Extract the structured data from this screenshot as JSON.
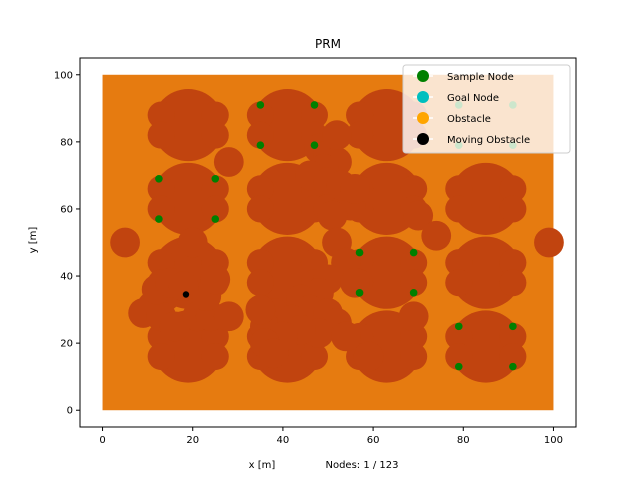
{
  "chart_data": {
    "type": "scatter",
    "title": "PRM",
    "xlabel": "x [m]",
    "ylabel": "y [m]",
    "footer_text": "Nodes: 1 / 123",
    "xlim": [
      -5,
      105
    ],
    "ylim": [
      -5,
      105
    ],
    "xticks": [
      0,
      20,
      40,
      60,
      80,
      100
    ],
    "yticks": [
      0,
      20,
      40,
      60,
      80,
      100
    ],
    "workspace": {
      "x": [
        0,
        100
      ],
      "y": [
        0,
        100
      ],
      "color": "#e67b10"
    },
    "obstacle_color": "#c1440f",
    "obstacle_clusters": [
      {
        "x": 19,
        "y": 85,
        "label": "cluster"
      },
      {
        "x": 41,
        "y": 85,
        "label": "cluster"
      },
      {
        "x": 63,
        "y": 85,
        "label": "cluster"
      },
      {
        "x": 19,
        "y": 63,
        "label": "cluster"
      },
      {
        "x": 41,
        "y": 63,
        "label": "cluster"
      },
      {
        "x": 63,
        "y": 63,
        "label": "cluster"
      },
      {
        "x": 85,
        "y": 63,
        "label": "cluster"
      },
      {
        "x": 19,
        "y": 41,
        "label": "cluster"
      },
      {
        "x": 41,
        "y": 41,
        "label": "cluster"
      },
      {
        "x": 63,
        "y": 41,
        "label": "cluster"
      },
      {
        "x": 85,
        "y": 41,
        "label": "cluster"
      },
      {
        "x": 19,
        "y": 19,
        "label": "cluster"
      },
      {
        "x": 41,
        "y": 19,
        "label": "cluster"
      },
      {
        "x": 63,
        "y": 19,
        "label": "cluster"
      },
      {
        "x": 85,
        "y": 19,
        "label": "cluster"
      }
    ],
    "extra_obstacles": [
      {
        "x": 5,
        "y": 50
      },
      {
        "x": 28,
        "y": 74
      },
      {
        "x": 20,
        "y": 50
      },
      {
        "x": 48,
        "y": 78
      },
      {
        "x": 50,
        "y": 76
      },
      {
        "x": 52,
        "y": 74
      },
      {
        "x": 49,
        "y": 72
      },
      {
        "x": 46,
        "y": 70
      },
      {
        "x": 50,
        "y": 68
      },
      {
        "x": 52,
        "y": 64
      },
      {
        "x": 55,
        "y": 61
      },
      {
        "x": 50,
        "y": 60
      },
      {
        "x": 51,
        "y": 58
      },
      {
        "x": 53,
        "y": 67
      },
      {
        "x": 56,
        "y": 66
      },
      {
        "x": 52,
        "y": 82
      },
      {
        "x": 70,
        "y": 58
      },
      {
        "x": 74,
        "y": 52
      },
      {
        "x": 52,
        "y": 50
      },
      {
        "x": 54,
        "y": 44
      },
      {
        "x": 50,
        "y": 39
      },
      {
        "x": 56,
        "y": 38
      },
      {
        "x": 48,
        "y": 35
      },
      {
        "x": 44,
        "y": 33
      },
      {
        "x": 46,
        "y": 30
      },
      {
        "x": 50,
        "y": 29
      },
      {
        "x": 52,
        "y": 26
      },
      {
        "x": 48,
        "y": 23
      },
      {
        "x": 54,
        "y": 22
      },
      {
        "x": 38,
        "y": 29
      },
      {
        "x": 36,
        "y": 25
      },
      {
        "x": 35,
        "y": 30
      },
      {
        "x": 42,
        "y": 27
      },
      {
        "x": 44,
        "y": 24
      },
      {
        "x": 40,
        "y": 22
      },
      {
        "x": 36,
        "y": 20
      },
      {
        "x": 38,
        "y": 17
      },
      {
        "x": 14,
        "y": 34
      },
      {
        "x": 11,
        "y": 31
      },
      {
        "x": 9,
        "y": 29
      },
      {
        "x": 13,
        "y": 28
      },
      {
        "x": 16,
        "y": 25
      },
      {
        "x": 12,
        "y": 36
      },
      {
        "x": 21,
        "y": 28
      },
      {
        "x": 24,
        "y": 28
      },
      {
        "x": 28,
        "y": 28
      },
      {
        "x": 23,
        "y": 34
      },
      {
        "x": 25,
        "y": 39
      },
      {
        "x": 15,
        "y": 38
      },
      {
        "x": 18,
        "y": 37
      },
      {
        "x": 59,
        "y": 16
      },
      {
        "x": 69,
        "y": 28
      },
      {
        "x": 99,
        "y": 50
      }
    ],
    "series": [
      {
        "name": "Sample Node",
        "color": "#008000",
        "x": [
          35,
          47,
          35,
          47,
          12.5,
          25,
          12.5,
          25,
          57,
          69,
          57,
          69,
          79,
          91,
          79,
          91,
          79,
          91,
          79,
          91
        ],
        "y": [
          91,
          91,
          79,
          79,
          69,
          69,
          57,
          57,
          47,
          47,
          35,
          35,
          25,
          25,
          13,
          13,
          91,
          91,
          79,
          79
        ]
      },
      {
        "name": "Goal Node",
        "color": "#00bfbf",
        "x": [],
        "y": []
      },
      {
        "name": "Obstacle",
        "color": "#ffa500",
        "x": [],
        "y": []
      },
      {
        "name": "Moving Obstacle",
        "color": "#000000",
        "x": [
          18.5
        ],
        "y": [
          34.5
        ]
      }
    ],
    "legend_position": "top-right",
    "grid": false
  }
}
